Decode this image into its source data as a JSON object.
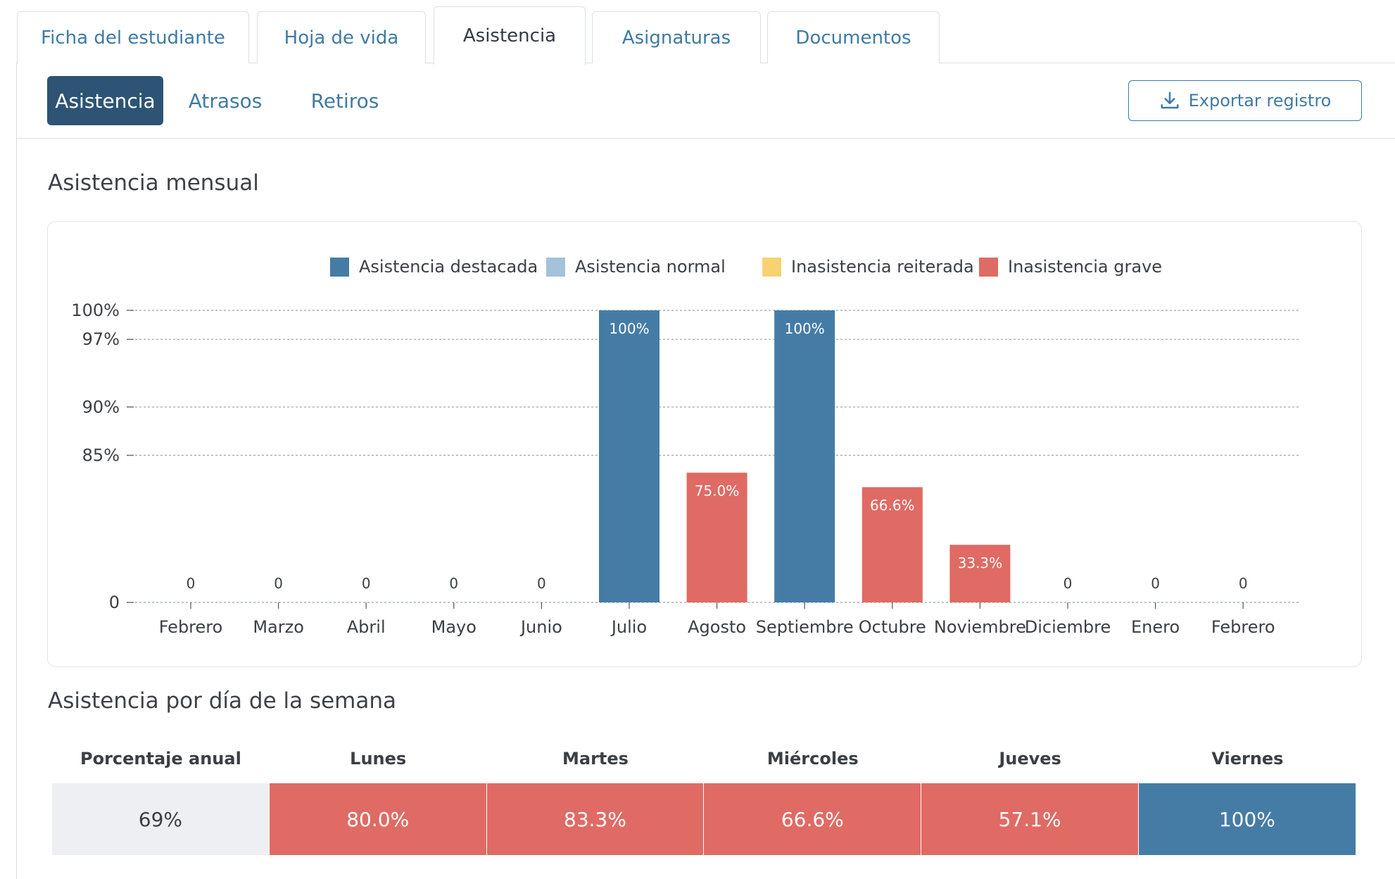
{
  "tabs": [
    {
      "label": "Ficha del estudiante",
      "active": false
    },
    {
      "label": "Hoja de vida",
      "active": false
    },
    {
      "label": "Asistencia",
      "active": true
    },
    {
      "label": "Asignaturas",
      "active": false
    },
    {
      "label": "Documentos",
      "active": false
    }
  ],
  "subnav": {
    "items": [
      {
        "label": "Asistencia",
        "active": true
      },
      {
        "label": "Atrasos",
        "active": false
      },
      {
        "label": "Retiros",
        "active": false
      }
    ],
    "export_label": "Exportar registro",
    "export_icon": "download-icon"
  },
  "monthly_title": "Asistencia mensual",
  "weekday_title": "Asistencia por día de la semana",
  "colors": {
    "destacada": "#457ca6",
    "normal": "#a3c2dc",
    "reiterada": "#f8d270",
    "grave": "#e06a64",
    "annual_bg": "#eeeff3",
    "accent": "#2d5474"
  },
  "chart_data": {
    "type": "bar",
    "title": "",
    "xlabel": "",
    "ylabel": "",
    "legend": {
      "position": "top",
      "entries": [
        {
          "label": "Asistencia destacada",
          "color": "#457ca6"
        },
        {
          "label": "Asistencia normal",
          "color": "#a3c2dc"
        },
        {
          "label": "Inasistencia reiterada",
          "color": "#f8d270"
        },
        {
          "label": "Inasistencia grave",
          "color": "#e06a64"
        }
      ]
    },
    "y_ticks": [
      {
        "value": 100,
        "label": "100%",
        "gridline": true
      },
      {
        "value": 97,
        "label": "97%",
        "gridline": true
      },
      {
        "value": 90,
        "label": "90%",
        "gridline": true
      },
      {
        "value": 85,
        "label": "85%",
        "gridline": true
      },
      {
        "value": 0,
        "label": "0",
        "gridline": true
      }
    ],
    "y_scale": "piecewise-linear: 0-85 and 85-100 segments",
    "ylim": [
      0,
      100
    ],
    "categories": [
      "Febrero",
      "Marzo",
      "Abril",
      "Mayo",
      "Junio",
      "Julio",
      "Agosto",
      "Septiembre",
      "Octubre",
      "Noviembre",
      "Diciembre",
      "Enero",
      "Febrero"
    ],
    "values": [
      0,
      0,
      0,
      0,
      0,
      100,
      75.0,
      100,
      66.6,
      33.3,
      0,
      0,
      0
    ],
    "data_labels": [
      "0",
      "0",
      "0",
      "0",
      "0",
      "100%",
      "75.0%",
      "100%",
      "66.6%",
      "33.3%",
      "0",
      "0",
      "0"
    ],
    "bar_categories": [
      "none",
      "none",
      "none",
      "none",
      "none",
      "destacada",
      "grave",
      "destacada",
      "grave",
      "grave",
      "none",
      "none",
      "none"
    ]
  },
  "weekday_table": {
    "headers": [
      "Porcentaje anual",
      "Lunes",
      "Martes",
      "Miércoles",
      "Jueves",
      "Viernes"
    ],
    "values": [
      "69%",
      "80.0%",
      "83.3%",
      "66.6%",
      "57.1%",
      "100%"
    ],
    "categories": [
      "annual",
      "grave",
      "grave",
      "grave",
      "grave",
      "destacada"
    ]
  }
}
